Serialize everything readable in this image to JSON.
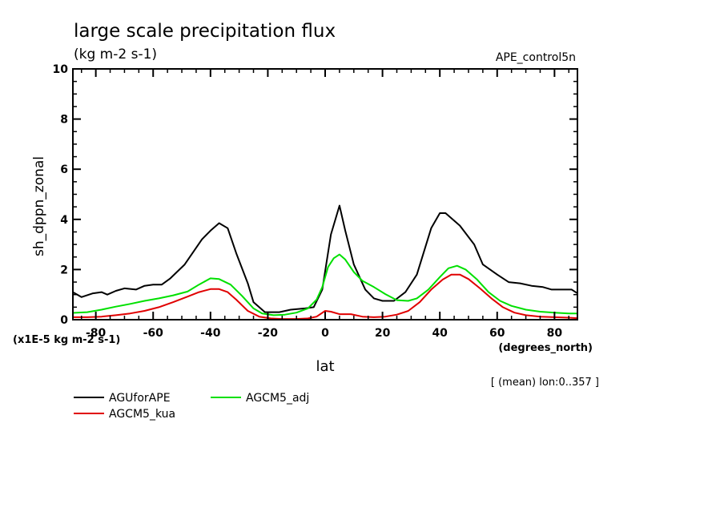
{
  "chart_data": {
    "type": "line",
    "title": "large scale precipitation flux",
    "subtitle": "(kg m-2 s-1)",
    "dataset_label": "APE_control5n",
    "xlabel": "lat",
    "xunits": "(degrees_north)",
    "ylabel": "sh_dppn_zonal",
    "yunits": "(x1E-5 kg m-2 s-1)",
    "footnote": "[ (mean) lon:0..357 ]",
    "xlim": [
      -88,
      88
    ],
    "ylim": [
      0,
      10
    ],
    "xticks": [
      -80,
      -60,
      -40,
      -20,
      0,
      20,
      40,
      60,
      80
    ],
    "xtick_labels": [
      "-80",
      "-60",
      "-40",
      "-20",
      "0",
      "20",
      "40",
      "60",
      "80"
    ],
    "yticks": [
      0,
      2,
      4,
      6,
      8,
      10
    ],
    "ytick_labels": [
      "0",
      "2",
      "4",
      "6",
      "8",
      "10"
    ],
    "grid": false,
    "legend_placement": "bottom-left",
    "series": [
      {
        "name": "AGUforAPE",
        "color": "#000000",
        "x": [
          -88,
          -85,
          -81,
          -78,
          -76,
          -73,
          -70,
          -66,
          -63,
          -60,
          -57,
          -54,
          -49,
          -43,
          -40,
          -37,
          -34,
          -31,
          -27,
          -25,
          -21,
          -16,
          -12,
          -7,
          -4,
          -1,
          2,
          5,
          7,
          10,
          14,
          17,
          20,
          24,
          28,
          32,
          37,
          40,
          42,
          47,
          52,
          55,
          60,
          64,
          68,
          72,
          76,
          79,
          82,
          86,
          88
        ],
        "values": [
          1.1,
          0.9,
          1.05,
          1.1,
          1.0,
          1.15,
          1.25,
          1.2,
          1.35,
          1.4,
          1.4,
          1.65,
          2.2,
          3.2,
          3.55,
          3.85,
          3.65,
          2.65,
          1.45,
          0.7,
          0.3,
          0.3,
          0.4,
          0.45,
          0.5,
          1.2,
          3.4,
          4.55,
          3.55,
          2.2,
          1.2,
          0.85,
          0.75,
          0.75,
          1.1,
          1.8,
          3.65,
          4.25,
          4.25,
          3.75,
          3.0,
          2.2,
          1.8,
          1.5,
          1.45,
          1.35,
          1.3,
          1.2,
          1.2,
          1.2,
          1.05
        ]
      },
      {
        "name": "AGCM5_adj",
        "color": "#00e000",
        "x": [
          -88,
          -83,
          -78,
          -73,
          -68,
          -63,
          -58,
          -53,
          -48,
          -44,
          -40,
          -37,
          -33,
          -29,
          -25,
          -22,
          -18,
          -14,
          -10,
          -6,
          -3,
          -1,
          1,
          3,
          5,
          7,
          10,
          13,
          17,
          21,
          25,
          29,
          32,
          36,
          40,
          43,
          46,
          49,
          53,
          57,
          61,
          65,
          70,
          75,
          80,
          85,
          88
        ],
        "values": [
          0.27,
          0.3,
          0.4,
          0.52,
          0.63,
          0.75,
          0.85,
          0.97,
          1.12,
          1.4,
          1.65,
          1.62,
          1.4,
          0.95,
          0.45,
          0.25,
          0.18,
          0.2,
          0.28,
          0.45,
          0.8,
          1.3,
          2.1,
          2.45,
          2.6,
          2.4,
          1.9,
          1.55,
          1.3,
          1.02,
          0.78,
          0.75,
          0.85,
          1.2,
          1.7,
          2.05,
          2.15,
          2.0,
          1.6,
          1.1,
          0.75,
          0.55,
          0.4,
          0.32,
          0.28,
          0.25,
          0.25
        ]
      },
      {
        "name": "AGCM5_kua",
        "color": "#e00000",
        "x": [
          -88,
          -83,
          -78,
          -73,
          -68,
          -63,
          -58,
          -53,
          -48,
          -44,
          -40,
          -37,
          -34,
          -31,
          -27,
          -23,
          -19,
          -15,
          -10,
          -6,
          -3,
          0,
          2,
          5,
          9,
          13,
          17,
          21,
          25,
          29,
          33,
          37,
          41,
          44,
          47,
          50,
          54,
          58,
          62,
          66,
          70,
          75,
          80,
          85,
          88
        ],
        "values": [
          0.1,
          0.1,
          0.12,
          0.18,
          0.25,
          0.35,
          0.5,
          0.7,
          0.92,
          1.1,
          1.22,
          1.22,
          1.1,
          0.8,
          0.35,
          0.12,
          0.05,
          0.03,
          0.03,
          0.05,
          0.12,
          0.35,
          0.32,
          0.22,
          0.22,
          0.12,
          0.1,
          0.12,
          0.2,
          0.35,
          0.7,
          1.2,
          1.6,
          1.8,
          1.8,
          1.62,
          1.25,
          0.85,
          0.5,
          0.28,
          0.18,
          0.12,
          0.1,
          0.08,
          0.06
        ]
      }
    ]
  }
}
